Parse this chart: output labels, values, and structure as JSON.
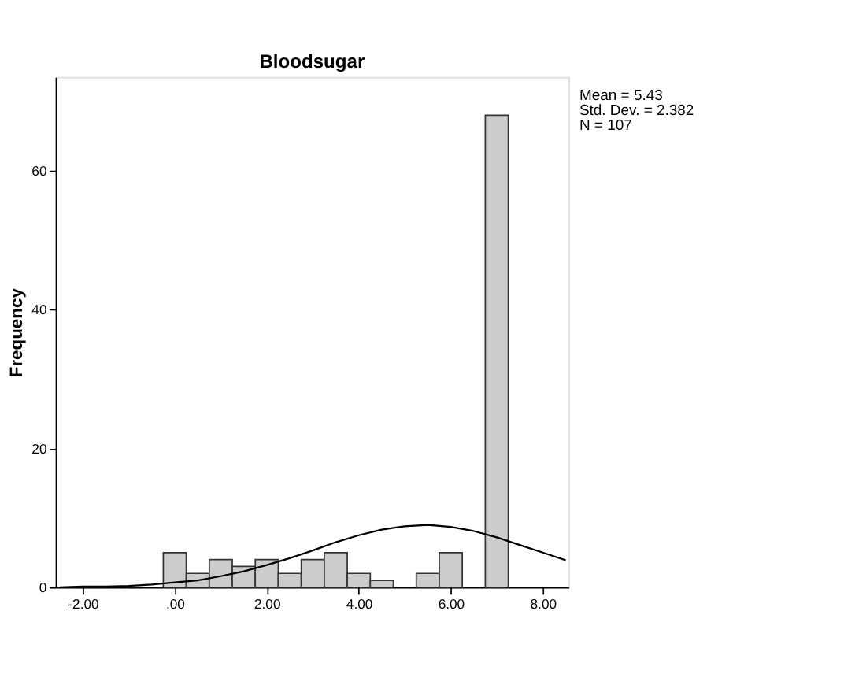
{
  "chart_data": {
    "type": "histogram",
    "title": "Bloodsugar",
    "ylabel": "Frequency",
    "bins": [
      -0.25,
      0.25,
      0.75,
      1.25,
      1.75,
      2.25,
      2.75,
      3.25,
      3.75,
      4.25,
      4.75,
      5.25,
      5.75,
      6.25,
      6.75,
      7.25
    ],
    "values": [
      5,
      2,
      4,
      3,
      4,
      2,
      4,
      5,
      2,
      1,
      0,
      2,
      5,
      0,
      68
    ],
    "color": "#cccccc",
    "series": [
      {
        "type": "line",
        "color": "#000000",
        "x": [
          -2.5,
          -2,
          -1.5,
          -1,
          -0.5,
          0,
          0.5,
          1,
          1.5,
          2,
          2.5,
          3,
          3.5,
          4,
          4.5,
          5,
          5.5,
          6,
          6.5,
          7,
          7.5,
          8,
          8.5
        ],
        "values": [
          0.0,
          0.1,
          0.1,
          0.2,
          0.4,
          0.7,
          1.0,
          1.6,
          2.3,
          3.2,
          4.2,
          5.3,
          6.5,
          7.5,
          8.3,
          8.8,
          9.0,
          8.7,
          8.1,
          7.2,
          6.1,
          5.0,
          3.9
        ]
      }
    ],
    "xlim": [
      -2.59,
      8.56
    ],
    "xticks": [
      {
        "value": -2,
        "label": "-2.00"
      },
      {
        "value": 0,
        "label": ".00"
      },
      {
        "value": 2,
        "label": "2.00"
      },
      {
        "value": 4,
        "label": "4.00"
      },
      {
        "value": 6,
        "label": "6.00"
      },
      {
        "value": 8,
        "label": "8.00"
      }
    ],
    "ylim": [
      0,
      73.5
    ],
    "yticks": [
      0,
      20,
      40,
      60
    ],
    "grid": false,
    "annotations": [
      "Mean = 5.43",
      "Std. Dev. = 2.382",
      "N = 107"
    ]
  }
}
